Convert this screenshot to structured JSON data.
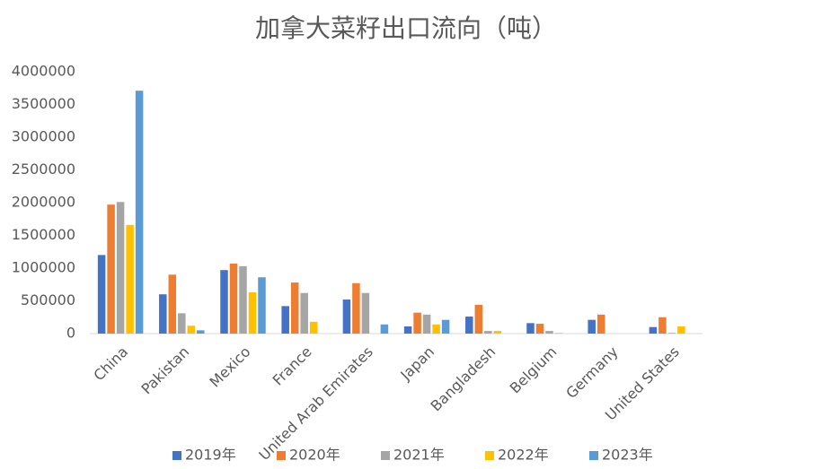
{
  "chart_data": {
    "type": "bar",
    "title": "加拿大菜籽出口流向（吨）",
    "categories": [
      "China",
      "Pakistan",
      "Mexico",
      "France",
      "United Arab Emirates",
      "Japan",
      "Bangladesh",
      "Belgium",
      "Germany",
      "United States"
    ],
    "series": [
      {
        "name": "2019年",
        "color": "#4472c4",
        "values": [
          1200000,
          600000,
          970000,
          420000,
          520000,
          110000,
          260000,
          160000,
          210000,
          100000
        ]
      },
      {
        "name": "2020年",
        "color": "#ed7d31",
        "values": [
          1970000,
          900000,
          1070000,
          780000,
          770000,
          320000,
          440000,
          150000,
          290000,
          250000
        ]
      },
      {
        "name": "2021年",
        "color": "#a5a5a5",
        "values": [
          2010000,
          310000,
          1030000,
          620000,
          620000,
          290000,
          40000,
          40000,
          0,
          10000
        ]
      },
      {
        "name": "2022年",
        "color": "#ffc000",
        "values": [
          1660000,
          120000,
          630000,
          180000,
          0,
          140000,
          40000,
          10000,
          0,
          110000
        ]
      },
      {
        "name": "2023年",
        "color": "#5b9bd5",
        "values": [
          3710000,
          50000,
          860000,
          0,
          140000,
          210000,
          0,
          0,
          0,
          0
        ]
      }
    ],
    "ylim": [
      0,
      4000000
    ],
    "yticks": [
      0,
      500000,
      1000000,
      1500000,
      2000000,
      2500000,
      3000000,
      3500000,
      4000000
    ],
    "grid": false,
    "legend": "bottom"
  }
}
